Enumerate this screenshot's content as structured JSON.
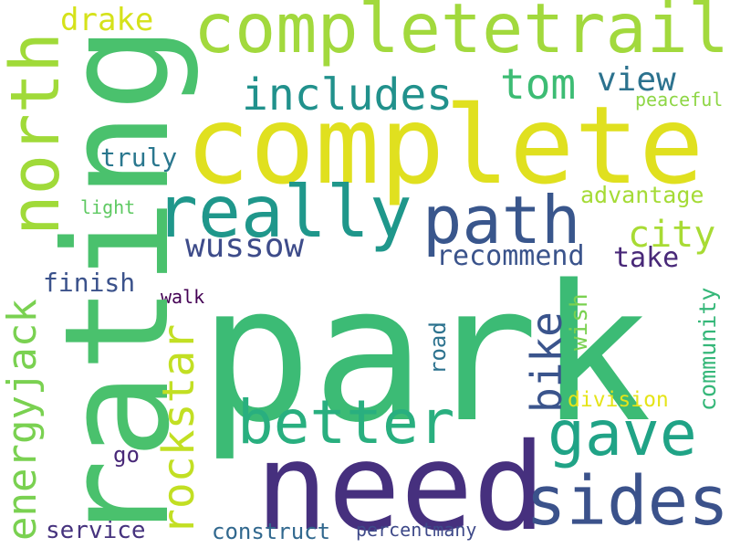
{
  "words": [
    {
      "key": "park",
      "text": "park",
      "color": "#3cbb75",
      "orientation": "horizontal"
    },
    {
      "key": "rating",
      "text": "rating",
      "color": "#4ac16d",
      "orientation": "vertical"
    },
    {
      "key": "need",
      "text": "need",
      "color": "#46307e",
      "orientation": "horizontal"
    },
    {
      "key": "complete",
      "text": "complete",
      "color": "#e0e01f",
      "orientation": "horizontal"
    },
    {
      "key": "completetrail",
      "text": "completetrail",
      "color": "#a2d93d",
      "orientation": "horizontal"
    },
    {
      "key": "really",
      "text": "really",
      "color": "#1f978b",
      "orientation": "horizontal"
    },
    {
      "key": "path",
      "text": "path",
      "color": "#39568c",
      "orientation": "horizontal"
    },
    {
      "key": "better",
      "text": "better",
      "color": "#29af7f",
      "orientation": "horizontal"
    },
    {
      "key": "sides",
      "text": "sides",
      "color": "#3b528b",
      "orientation": "horizontal"
    },
    {
      "key": "gave",
      "text": "gave",
      "color": "#20a386",
      "orientation": "horizontal"
    },
    {
      "key": "north",
      "text": "north",
      "color": "#a0da39",
      "orientation": "vertical"
    },
    {
      "key": "energyjack",
      "text": "energyjack",
      "color": "#7ad151",
      "orientation": "vertical"
    },
    {
      "key": "rockstar",
      "text": "rockstar",
      "color": "#c2df23",
      "orientation": "vertical"
    },
    {
      "key": "includes",
      "text": "includes",
      "color": "#21918c",
      "orientation": "horizontal"
    },
    {
      "key": "tom",
      "text": "tom",
      "color": "#3dbc74",
      "orientation": "horizontal"
    },
    {
      "key": "view",
      "text": "view",
      "color": "#2c728e",
      "orientation": "horizontal"
    },
    {
      "key": "drake",
      "text": "drake",
      "color": "#d5e21a",
      "orientation": "horizontal"
    },
    {
      "key": "wussow",
      "text": "wussow",
      "color": "#3e4c8a",
      "orientation": "horizontal"
    },
    {
      "key": "bike",
      "text": "bike",
      "color": "#3a548c",
      "orientation": "vertical"
    },
    {
      "key": "city",
      "text": "city",
      "color": "#a8db34",
      "orientation": "horizontal"
    },
    {
      "key": "truly",
      "text": "truly",
      "color": "#2a778e",
      "orientation": "horizontal"
    },
    {
      "key": "peaceful",
      "text": "peaceful",
      "color": "#8ed645",
      "orientation": "horizontal"
    },
    {
      "key": "advantage",
      "text": "advantage",
      "color": "#a5db36",
      "orientation": "horizontal"
    },
    {
      "key": "light",
      "text": "light",
      "color": "#5ec962",
      "orientation": "horizontal"
    },
    {
      "key": "recommend",
      "text": "recommend",
      "color": "#3a538b",
      "orientation": "horizontal"
    },
    {
      "key": "take",
      "text": "take",
      "color": "#482878",
      "orientation": "horizontal"
    },
    {
      "key": "finish",
      "text": "finish",
      "color": "#3b528b",
      "orientation": "horizontal"
    },
    {
      "key": "walk",
      "text": "walk",
      "color": "#440154",
      "orientation": "horizontal"
    },
    {
      "key": "wish",
      "text": "wish",
      "color": "#7ad151",
      "orientation": "vertical"
    },
    {
      "key": "road",
      "text": "road",
      "color": "#2c728e",
      "orientation": "vertical"
    },
    {
      "key": "community",
      "text": "community",
      "color": "#35b779",
      "orientation": "vertical"
    },
    {
      "key": "division",
      "text": "division",
      "color": "#e5e419",
      "orientation": "horizontal"
    },
    {
      "key": "go",
      "text": "go",
      "color": "#482878",
      "orientation": "horizontal"
    },
    {
      "key": "service",
      "text": "service",
      "color": "#46337e",
      "orientation": "horizontal"
    },
    {
      "key": "construct",
      "text": "construct",
      "color": "#31688e",
      "orientation": "horizontal"
    },
    {
      "key": "percentmany",
      "text": "percentmany",
      "color": "#3e4989",
      "orientation": "horizontal"
    }
  ]
}
